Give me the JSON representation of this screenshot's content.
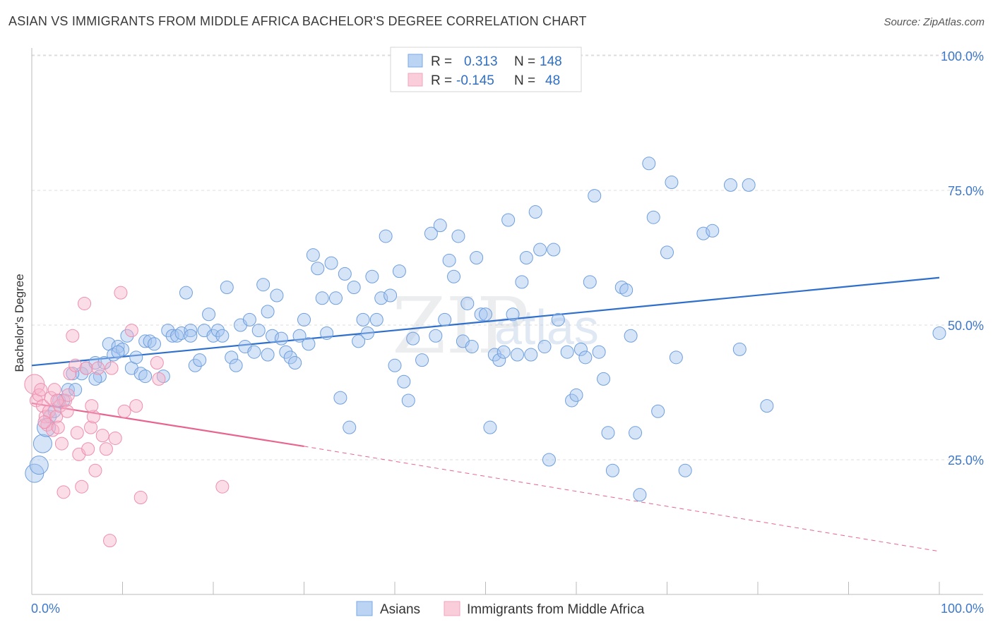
{
  "header": {
    "title": "ASIAN VS IMMIGRANTS FROM MIDDLE AFRICA BACHELOR'S DEGREE CORRELATION CHART",
    "source": "Source: ZipAtlas.com"
  },
  "colors": {
    "asian": "#7aaae6",
    "asian_line": "#2f6fcc",
    "africa": "#f4a3bd",
    "africa_line": "#e8648f",
    "tick_text": "#3d78c9"
  },
  "legend": {
    "rows": [
      {
        "r_label": "R =",
        "r_value": "0.313",
        "n_label": "N =",
        "n_value": "148"
      },
      {
        "r_label": "R =",
        "r_value": "-0.145",
        "n_label": "N =",
        "n_value": "48"
      }
    ]
  },
  "watermark": {
    "zip": "ZIP",
    "atlas": "atlas"
  },
  "chart_data": {
    "type": "scatter",
    "title": "ASIAN VS IMMIGRANTS FROM MIDDLE AFRICA BACHELOR'S DEGREE CORRELATION CHART",
    "xlabel": "",
    "ylabel": "Bachelor's Degree",
    "xlim": [
      0,
      100
    ],
    "ylim": [
      0,
      105
    ],
    "x_tick_labels": [
      "0.0%",
      "100.0%"
    ],
    "y_tick_labels": [
      "100.0%",
      "75.0%",
      "50.0%",
      "25.0%"
    ],
    "y_ticks": [
      100,
      75,
      50,
      25
    ],
    "grid": true,
    "legend_position": "top-center",
    "series": [
      {
        "name": "Asians",
        "color": "#7aaae6",
        "trend": {
          "x": [
            0,
            100
          ],
          "y": [
            42.5,
            58.8
          ],
          "style": "solid"
        },
        "points": [
          [
            0.3,
            22.5
          ],
          [
            0.8,
            24
          ],
          [
            1.2,
            28
          ],
          [
            1.6,
            31
          ],
          [
            2,
            33
          ],
          [
            2.5,
            34
          ],
          [
            3.5,
            36
          ],
          [
            4,
            38
          ],
          [
            4.8,
            38
          ],
          [
            5.5,
            41
          ],
          [
            6,
            42
          ],
          [
            7,
            43
          ],
          [
            7.5,
            40.5
          ],
          [
            8.5,
            46.5
          ],
          [
            9,
            44.5
          ],
          [
            9.5,
            46
          ],
          [
            10,
            45.5
          ],
          [
            10.5,
            48
          ],
          [
            11,
            42
          ],
          [
            11.5,
            44
          ],
          [
            12,
            41
          ],
          [
            12.5,
            47
          ],
          [
            13,
            47
          ],
          [
            13.5,
            46.5
          ],
          [
            14.5,
            40.5
          ],
          [
            15,
            49
          ],
          [
            15.5,
            48
          ],
          [
            16,
            48
          ],
          [
            16.5,
            48.5
          ],
          [
            17,
            56
          ],
          [
            17.5,
            49
          ],
          [
            18,
            42.5
          ],
          [
            18.5,
            43.5
          ],
          [
            19,
            49
          ],
          [
            19.5,
            52
          ],
          [
            20,
            48
          ],
          [
            20.5,
            49
          ],
          [
            21,
            48
          ],
          [
            21.5,
            57
          ],
          [
            22,
            44
          ],
          [
            22.5,
            42.5
          ],
          [
            23,
            50
          ],
          [
            23.5,
            46
          ],
          [
            24,
            51
          ],
          [
            24.5,
            45
          ],
          [
            25,
            49
          ],
          [
            25.5,
            57.5
          ],
          [
            26,
            52.5
          ],
          [
            26.5,
            48
          ],
          [
            27,
            55.5
          ],
          [
            27.5,
            47.5
          ],
          [
            28,
            45
          ],
          [
            28.5,
            44
          ],
          [
            29,
            43
          ],
          [
            29.5,
            48
          ],
          [
            30,
            51
          ],
          [
            30.5,
            46.5
          ],
          [
            31,
            63
          ],
          [
            31.5,
            60.5
          ],
          [
            32,
            55
          ],
          [
            32.5,
            48.5
          ],
          [
            33,
            61.5
          ],
          [
            33.5,
            55
          ],
          [
            34,
            36.5
          ],
          [
            34.5,
            59.5
          ],
          [
            35,
            31
          ],
          [
            35.5,
            57
          ],
          [
            36,
            47
          ],
          [
            36.5,
            51
          ],
          [
            37,
            48.5
          ],
          [
            37.5,
            59
          ],
          [
            38,
            51
          ],
          [
            38.5,
            55
          ],
          [
            39,
            66.5
          ],
          [
            39.5,
            55.5
          ],
          [
            40,
            42.5
          ],
          [
            40.5,
            60
          ],
          [
            41,
            39.5
          ],
          [
            41.5,
            36
          ],
          [
            42,
            47.5
          ],
          [
            43,
            43.5
          ],
          [
            44,
            67
          ],
          [
            44.5,
            48
          ],
          [
            45,
            68.5
          ],
          [
            45.5,
            51
          ],
          [
            46,
            62
          ],
          [
            46.5,
            59
          ],
          [
            47,
            66.5
          ],
          [
            47.5,
            47
          ],
          [
            48,
            54
          ],
          [
            48.5,
            46
          ],
          [
            49,
            62.5
          ],
          [
            49.5,
            52
          ],
          [
            50,
            52
          ],
          [
            50.5,
            31
          ],
          [
            51,
            44.5
          ],
          [
            51.5,
            43.5
          ],
          [
            52,
            45
          ],
          [
            52.5,
            69.5
          ],
          [
            53,
            52
          ],
          [
            53.5,
            44.5
          ],
          [
            54,
            58
          ],
          [
            54.5,
            62.5
          ],
          [
            55,
            44.5
          ],
          [
            55.5,
            71
          ],
          [
            56,
            64
          ],
          [
            56.5,
            46
          ],
          [
            57,
            25
          ],
          [
            57.5,
            64
          ],
          [
            58,
            51
          ],
          [
            59,
            45
          ],
          [
            59.5,
            36
          ],
          [
            60,
            37
          ],
          [
            60.5,
            45.5
          ],
          [
            61,
            44
          ],
          [
            61.5,
            58
          ],
          [
            62,
            74
          ],
          [
            62.5,
            45
          ],
          [
            63,
            40
          ],
          [
            63.5,
            30
          ],
          [
            64,
            23
          ],
          [
            65,
            57
          ],
          [
            65.5,
            56.5
          ],
          [
            66,
            48
          ],
          [
            66.5,
            30
          ],
          [
            67,
            18.5
          ],
          [
            68,
            80
          ],
          [
            68.5,
            70
          ],
          [
            69,
            34
          ],
          [
            70,
            63.5
          ],
          [
            70.5,
            76.5
          ],
          [
            71,
            44
          ],
          [
            72,
            23
          ],
          [
            74,
            67
          ],
          [
            75,
            67.5
          ],
          [
            77,
            76
          ],
          [
            78,
            45.5
          ],
          [
            79,
            76
          ],
          [
            81,
            35
          ],
          [
            100,
            48.5
          ],
          [
            9.5,
            45
          ],
          [
            12.5,
            40.5
          ],
          [
            17.5,
            48
          ],
          [
            26,
            44.5
          ],
          [
            7,
            40
          ],
          [
            4.5,
            41
          ],
          [
            8,
            43
          ],
          [
            3,
            36
          ]
        ]
      },
      {
        "name": "Immigrants from Middle Africa",
        "color": "#f4a3bd",
        "trend": {
          "x": [
            0,
            30
          ],
          "y": [
            35.5,
            27.5
          ],
          "style": "solid",
          "extend_to": [
            100,
            8.0
          ]
        },
        "points": [
          [
            0.3,
            39
          ],
          [
            0.5,
            36
          ],
          [
            0.8,
            37
          ],
          [
            1,
            38
          ],
          [
            1.2,
            35
          ],
          [
            1.5,
            33
          ],
          [
            1.7,
            31.5
          ],
          [
            1.9,
            34
          ],
          [
            2.1,
            36.5
          ],
          [
            2.3,
            30.5
          ],
          [
            2.5,
            38
          ],
          [
            2.7,
            33
          ],
          [
            2.9,
            31
          ],
          [
            3.1,
            35
          ],
          [
            3.3,
            28
          ],
          [
            3.5,
            19
          ],
          [
            3.7,
            36
          ],
          [
            3.9,
            34
          ],
          [
            4.2,
            41
          ],
          [
            4.5,
            48
          ],
          [
            4.8,
            42.5
          ],
          [
            5,
            30
          ],
          [
            5.2,
            26
          ],
          [
            5.5,
            20
          ],
          [
            5.8,
            54
          ],
          [
            6,
            42
          ],
          [
            6.2,
            27
          ],
          [
            6.5,
            31
          ],
          [
            6.8,
            33
          ],
          [
            7,
            23
          ],
          [
            7.3,
            42
          ],
          [
            7.8,
            29.5
          ],
          [
            8.2,
            27
          ],
          [
            8.6,
            10
          ],
          [
            9.2,
            29
          ],
          [
            9.8,
            56
          ],
          [
            10.2,
            34
          ],
          [
            11,
            49
          ],
          [
            11.5,
            35
          ],
          [
            12,
            18
          ],
          [
            14,
            40
          ],
          [
            21,
            20
          ],
          [
            1.4,
            32
          ],
          [
            2.8,
            36
          ],
          [
            4,
            37
          ],
          [
            6.6,
            35
          ],
          [
            13.8,
            43
          ],
          [
            8.8,
            42
          ]
        ]
      }
    ]
  },
  "bottom_legend": {
    "items": [
      {
        "label": "Asians"
      },
      {
        "label": "Immigrants from Middle Africa"
      }
    ]
  }
}
